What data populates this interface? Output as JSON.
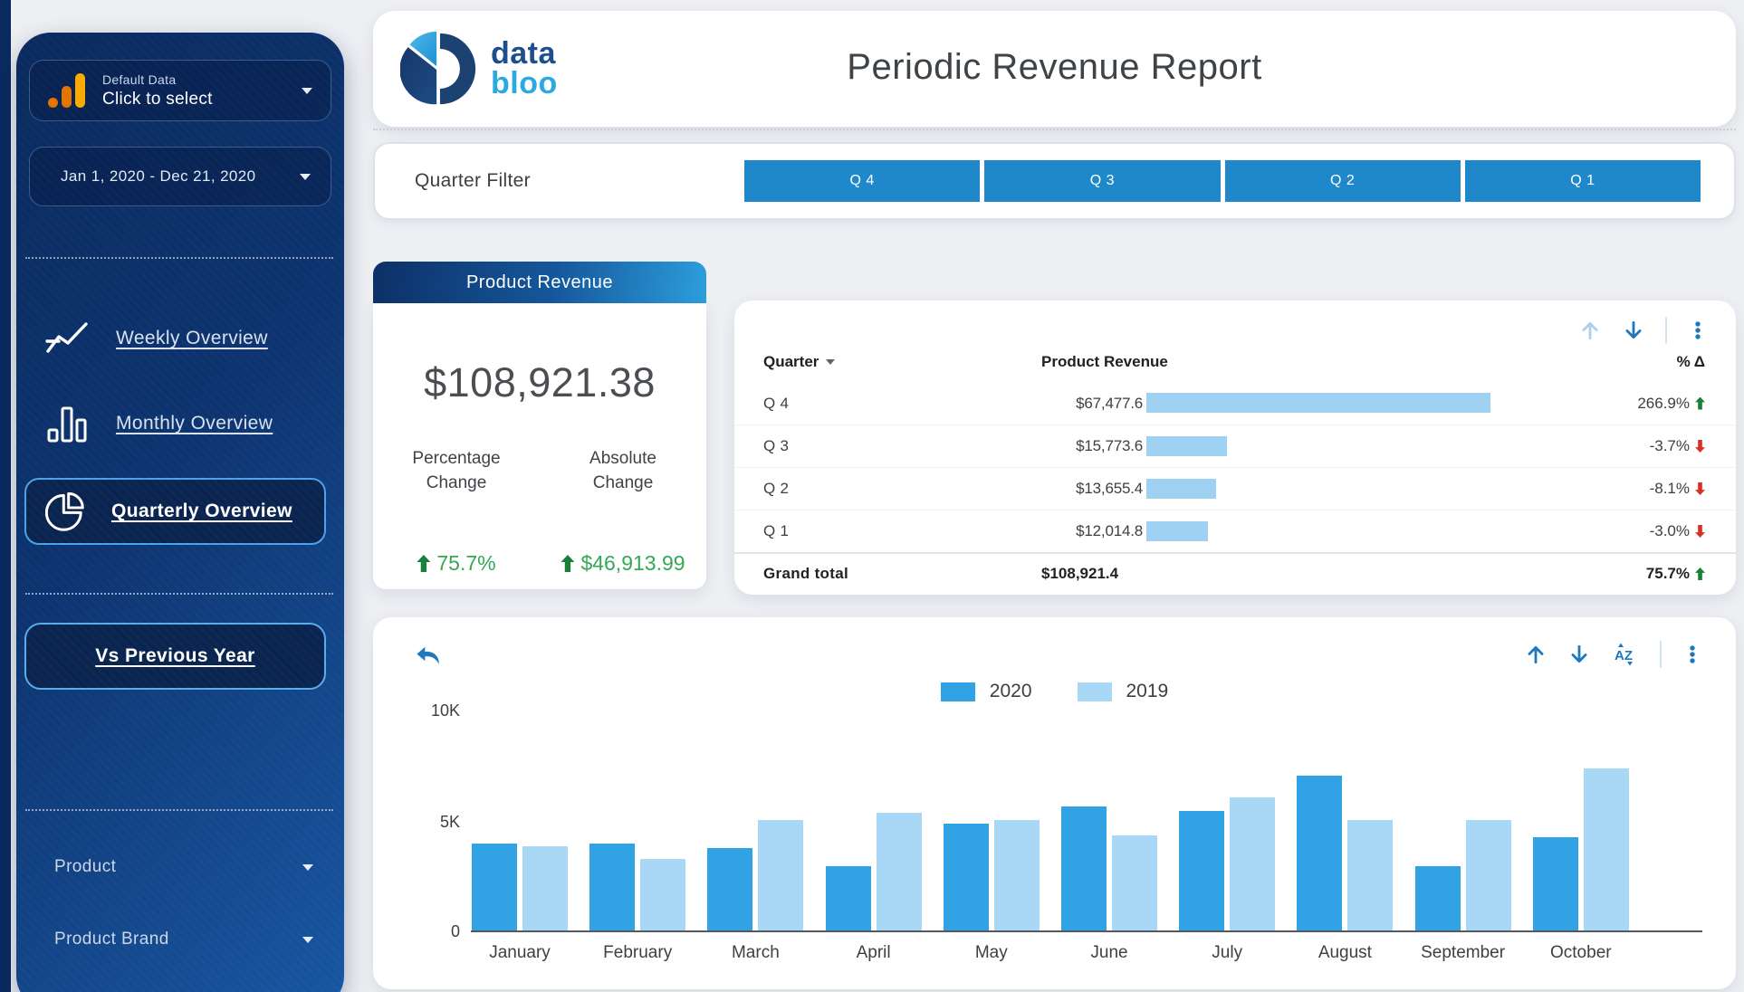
{
  "sidebar": {
    "source": {
      "label_top": "Default Data",
      "label_bottom": "Click to select"
    },
    "date_range": "Jan 1, 2020 - Dec 21, 2020",
    "nav": [
      {
        "label": "Weekly Overview"
      },
      {
        "label": "Monthly Overview"
      },
      {
        "label": "Quarterly Overview"
      }
    ],
    "compare_button": "Vs Previous Year",
    "dimension_filters": [
      {
        "label": "Product"
      },
      {
        "label": "Product Brand"
      }
    ]
  },
  "header": {
    "logo_word_1": "data",
    "logo_word_2": "bloo",
    "title": "Periodic Revenue Report"
  },
  "quarter_filter": {
    "label": "Quarter Filter",
    "options": [
      "Q 4",
      "Q 3",
      "Q 2",
      "Q 1"
    ]
  },
  "scorecard": {
    "title": "Product Revenue",
    "value": "$108,921.38",
    "percentage_label": "Percentage Change",
    "absolute_label": "Absolute Change",
    "percentage_change": "75.7%",
    "absolute_change": "$46,913.99"
  },
  "table": {
    "columns": {
      "quarter": "Quarter",
      "revenue": "Product Revenue",
      "delta": "% Δ"
    },
    "rows": [
      {
        "quarter": "Q 4",
        "revenue": "$67,477.6",
        "revenue_value": 67477.6,
        "delta": "266.9%",
        "direction": "up"
      },
      {
        "quarter": "Q 3",
        "revenue": "$15,773.6",
        "revenue_value": 15773.6,
        "delta": "-3.7%",
        "direction": "down"
      },
      {
        "quarter": "Q 2",
        "revenue": "$13,655.4",
        "revenue_value": 13655.4,
        "delta": "-8.1%",
        "direction": "down"
      },
      {
        "quarter": "Q 1",
        "revenue": "$12,014.8",
        "revenue_value": 12014.8,
        "delta": "-3.0%",
        "direction": "down"
      }
    ],
    "grand_total": {
      "label": "Grand total",
      "revenue": "$108,921.4",
      "delta": "75.7%",
      "direction": "up"
    }
  },
  "chart_data": {
    "type": "bar",
    "title": "",
    "categories": [
      "January",
      "February",
      "March",
      "April",
      "May",
      "June",
      "July",
      "August",
      "September",
      "October"
    ],
    "series": [
      {
        "name": "2020",
        "color": "#31a2e4",
        "values": [
          4000,
          4000,
          3800,
          3000,
          4900,
          5700,
          5500,
          7100,
          3000,
          4300
        ]
      },
      {
        "name": "2019",
        "color": "#a9d8f6",
        "values": [
          3900,
          3300,
          5100,
          5400,
          5100,
          4400,
          6100,
          5100,
          5100,
          7400
        ]
      }
    ],
    "xlabel": "",
    "ylabel": "",
    "y_ticks": [
      "10K",
      "5K",
      "0"
    ],
    "ylim": [
      0,
      10000
    ],
    "legend_position": "top-center",
    "grid": false
  },
  "colors": {
    "accent_blue": "#1d78bd",
    "pale_blue_icon": "#abd0ec",
    "filter_button": "#1f88cb",
    "table_bar": "#9fd2f2",
    "positive": "#188038",
    "negative": "#d93025"
  }
}
